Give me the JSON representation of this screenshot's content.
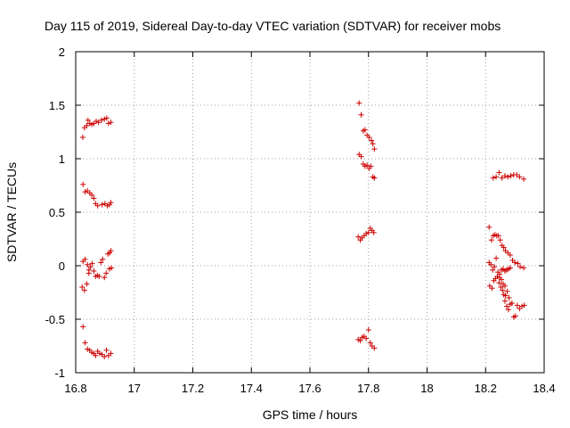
{
  "chart_data": {
    "type": "scatter",
    "title": "Day 115 of 2019, Sidereal Day-to-day VTEC variation (SDTVAR) for receiver mobs",
    "xlabel": "GPS time / hours",
    "ylabel": "SDTVAR / TECUs",
    "xlim": [
      16.8,
      18.4
    ],
    "ylim": [
      -1,
      2
    ],
    "xticks": [
      16.8,
      17,
      17.2,
      17.4,
      17.6,
      17.8,
      18,
      18.2,
      18.4
    ],
    "xtick_labels": [
      "16.8",
      "17",
      "17.2",
      "17.4",
      "17.6",
      "17.8",
      "18",
      "18.2",
      "18.4"
    ],
    "yticks": [
      -1,
      -0.5,
      0,
      0.5,
      1,
      1.5,
      2
    ],
    "ytick_labels": [
      "-1",
      "-0.5",
      "0",
      "0.5",
      "1",
      "1.5",
      "2"
    ],
    "grid": true,
    "marker": "+",
    "color": "#cc0000",
    "series": [
      {
        "name": "SDTVAR",
        "points": [
          [
            16.824,
            1.2
          ],
          [
            16.83,
            1.29
          ],
          [
            16.838,
            1.31
          ],
          [
            16.842,
            1.36
          ],
          [
            16.848,
            1.33
          ],
          [
            16.855,
            1.32
          ],
          [
            16.862,
            1.33
          ],
          [
            16.87,
            1.35
          ],
          [
            16.878,
            1.34
          ],
          [
            16.888,
            1.36
          ],
          [
            16.898,
            1.37
          ],
          [
            16.906,
            1.38
          ],
          [
            16.912,
            1.33
          ],
          [
            16.92,
            1.34
          ],
          [
            16.825,
            0.76
          ],
          [
            16.832,
            0.69
          ],
          [
            16.84,
            0.7
          ],
          [
            16.848,
            0.68
          ],
          [
            16.855,
            0.66
          ],
          [
            16.862,
            0.63
          ],
          [
            16.868,
            0.58
          ],
          [
            16.875,
            0.56
          ],
          [
            16.89,
            0.57
          ],
          [
            16.9,
            0.58
          ],
          [
            16.908,
            0.56
          ],
          [
            16.915,
            0.57
          ],
          [
            16.92,
            0.59
          ],
          [
            16.825,
            0.04
          ],
          [
            16.832,
            0.06
          ],
          [
            16.84,
            0.01
          ],
          [
            16.845,
            -0.04
          ],
          [
            16.85,
            -0.01
          ],
          [
            16.856,
            0.02
          ],
          [
            16.862,
            -0.05
          ],
          [
            16.868,
            -0.1
          ],
          [
            16.874,
            -0.09
          ],
          [
            16.88,
            -0.1
          ],
          [
            16.886,
            0.03
          ],
          [
            16.892,
            0.06
          ],
          [
            16.898,
            -0.11
          ],
          [
            16.904,
            -0.07
          ],
          [
            16.91,
            0.11
          ],
          [
            16.916,
            0.12
          ],
          [
            16.92,
            0.14
          ],
          [
            16.915,
            -0.03
          ],
          [
            16.922,
            -0.02
          ],
          [
            16.822,
            -0.2
          ],
          [
            16.83,
            -0.23
          ],
          [
            16.838,
            -0.17
          ],
          [
            16.845,
            -0.07
          ],
          [
            16.825,
            -0.57
          ],
          [
            16.832,
            -0.72
          ],
          [
            16.84,
            -0.78
          ],
          [
            16.848,
            -0.79
          ],
          [
            16.855,
            -0.81
          ],
          [
            16.862,
            -0.82
          ],
          [
            16.868,
            -0.84
          ],
          [
            16.875,
            -0.8
          ],
          [
            16.882,
            -0.82
          ],
          [
            16.89,
            -0.83
          ],
          [
            16.898,
            -0.85
          ],
          [
            16.905,
            -0.79
          ],
          [
            16.912,
            -0.84
          ],
          [
            16.92,
            -0.82
          ],
          [
            17.768,
            1.52
          ],
          [
            17.775,
            1.41
          ],
          [
            17.782,
            1.26
          ],
          [
            17.788,
            1.27
          ],
          [
            17.795,
            1.22
          ],
          [
            17.802,
            1.2
          ],
          [
            17.81,
            1.17
          ],
          [
            17.815,
            1.14
          ],
          [
            17.82,
            1.09
          ],
          [
            17.768,
            1.04
          ],
          [
            17.775,
            1.02
          ],
          [
            17.782,
            0.95
          ],
          [
            17.788,
            0.93
          ],
          [
            17.795,
            0.94
          ],
          [
            17.802,
            0.91
          ],
          [
            17.808,
            0.93
          ],
          [
            17.815,
            0.83
          ],
          [
            17.82,
            0.82
          ],
          [
            17.765,
            0.27
          ],
          [
            17.772,
            0.24
          ],
          [
            17.778,
            0.26
          ],
          [
            17.785,
            0.28
          ],
          [
            17.792,
            0.3
          ],
          [
            17.8,
            0.31
          ],
          [
            17.806,
            0.35
          ],
          [
            17.812,
            0.33
          ],
          [
            17.818,
            0.31
          ],
          [
            17.765,
            -0.69
          ],
          [
            17.772,
            -0.7
          ],
          [
            17.778,
            -0.67
          ],
          [
            17.785,
            -0.66
          ],
          [
            17.792,
            -0.68
          ],
          [
            17.8,
            -0.6
          ],
          [
            17.806,
            -0.72
          ],
          [
            17.812,
            -0.75
          ],
          [
            17.82,
            -0.77
          ],
          [
            18.226,
            0.82
          ],
          [
            18.236,
            0.83
          ],
          [
            18.246,
            0.87
          ],
          [
            18.256,
            0.82
          ],
          [
            18.266,
            0.84
          ],
          [
            18.276,
            0.83
          ],
          [
            18.286,
            0.84
          ],
          [
            18.296,
            0.85
          ],
          [
            18.306,
            0.85
          ],
          [
            18.316,
            0.83
          ],
          [
            18.33,
            0.81
          ],
          [
            18.212,
            0.36
          ],
          [
            18.22,
            0.24
          ],
          [
            18.226,
            0.28
          ],
          [
            18.232,
            0.29
          ],
          [
            18.238,
            0.28
          ],
          [
            18.244,
            0.28
          ],
          [
            18.25,
            0.24
          ],
          [
            18.256,
            0.19
          ],
          [
            18.262,
            0.17
          ],
          [
            18.268,
            0.14
          ],
          [
            18.276,
            0.12
          ],
          [
            18.284,
            0.1
          ],
          [
            18.292,
            0.05
          ],
          [
            18.3,
            0.03
          ],
          [
            18.31,
            0.02
          ],
          [
            18.318,
            -0.01
          ],
          [
            18.33,
            -0.02
          ],
          [
            18.212,
            0.03
          ],
          [
            18.218,
            0.01
          ],
          [
            18.224,
            -0.04
          ],
          [
            18.23,
            -0.01
          ],
          [
            18.236,
            0.07
          ],
          [
            18.242,
            -0.06
          ],
          [
            18.248,
            -0.08
          ],
          [
            18.254,
            -0.04
          ],
          [
            18.26,
            -0.03
          ],
          [
            18.266,
            -0.05
          ],
          [
            18.272,
            -0.04
          ],
          [
            18.278,
            -0.03
          ],
          [
            18.284,
            -0.02
          ],
          [
            18.214,
            -0.19
          ],
          [
            18.222,
            -0.21
          ],
          [
            18.228,
            -0.14
          ],
          [
            18.234,
            -0.12
          ],
          [
            18.24,
            -0.1
          ],
          [
            18.246,
            -0.16
          ],
          [
            18.252,
            -0.2
          ],
          [
            18.258,
            -0.23
          ],
          [
            18.262,
            -0.27
          ],
          [
            18.268,
            -0.28
          ],
          [
            18.274,
            -0.24
          ],
          [
            18.28,
            -0.3
          ],
          [
            18.248,
            -0.11
          ],
          [
            18.254,
            -0.13
          ],
          [
            18.26,
            -0.17
          ],
          [
            18.266,
            -0.19
          ],
          [
            18.266,
            -0.33
          ],
          [
            18.272,
            -0.38
          ],
          [
            18.278,
            -0.41
          ],
          [
            18.284,
            -0.36
          ],
          [
            18.29,
            -0.35
          ],
          [
            18.296,
            -0.48
          ],
          [
            18.302,
            -0.47
          ],
          [
            18.308,
            -0.37
          ],
          [
            18.316,
            -0.4
          ],
          [
            18.324,
            -0.38
          ],
          [
            18.332,
            -0.37
          ]
        ]
      }
    ]
  }
}
